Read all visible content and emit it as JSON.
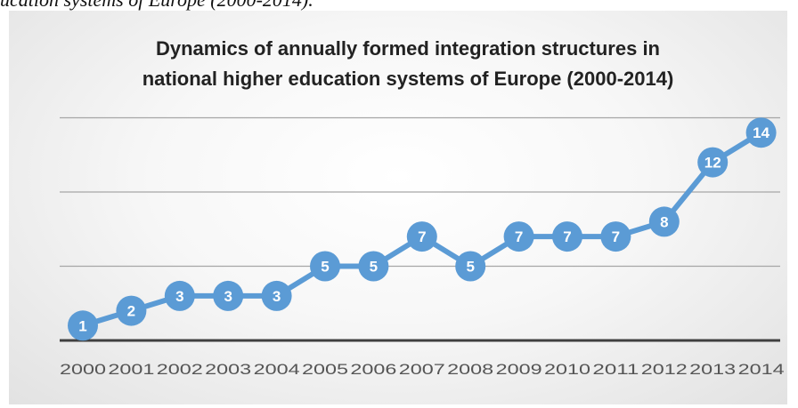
{
  "caption": "ucation systems of Europe (2000-2014).",
  "chart_data": {
    "type": "line",
    "title_lines": [
      "Dynamics of annually formed integration structures in",
      "national higher education systems of Europe (2000-2014)"
    ],
    "categories": [
      "2000",
      "2001",
      "2002",
      "2003",
      "2004",
      "2005",
      "2006",
      "2007",
      "2008",
      "2009",
      "2010",
      "2011",
      "2012",
      "2013",
      "2014"
    ],
    "series": [
      {
        "values": [
          1,
          2,
          3,
          3,
          3,
          5,
          5,
          7,
          5,
          7,
          7,
          7,
          8,
          12,
          14
        ]
      }
    ],
    "ylim": [
      0,
      15
    ],
    "gridlines": [
      0,
      5,
      10,
      15
    ],
    "data_labels": true,
    "legend": "none",
    "colors": {
      "line": "#5b9bd5",
      "marker": "#5b9bd5",
      "label": "#ffffff",
      "grid": "#a6a6a6",
      "axis": "#404040"
    }
  }
}
